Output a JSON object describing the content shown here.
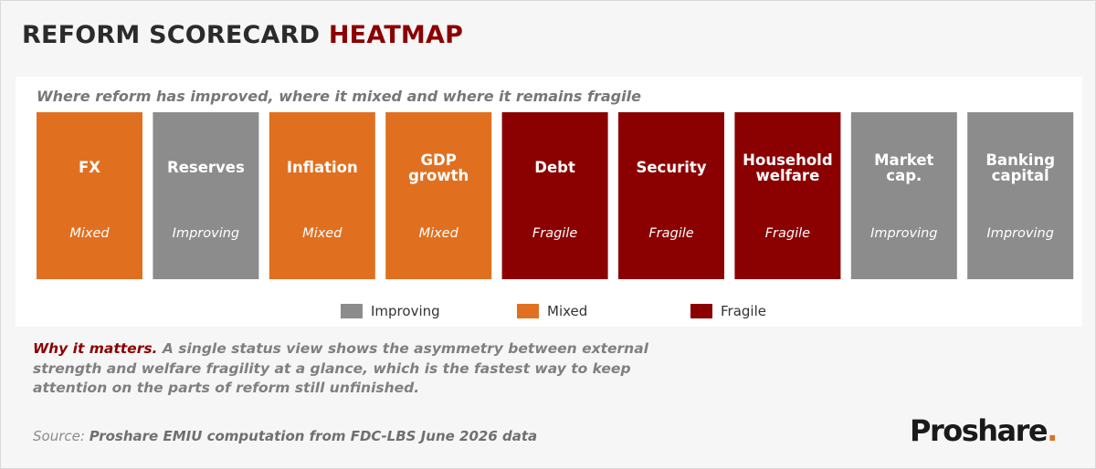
{
  "header": {
    "title_main": "REFORM SCORECARD",
    "title_accent": "HEATMAP",
    "subtitle": "Where reform has improved, where it mixed and where it remains fragile"
  },
  "chart_data": {
    "type": "heatmap",
    "categories": [
      {
        "name": [
          "FX"
        ],
        "status": "Mixed"
      },
      {
        "name": [
          "Reserves"
        ],
        "status": "Improving"
      },
      {
        "name": [
          "Inflation"
        ],
        "status": "Mixed"
      },
      {
        "name": [
          "GDP",
          "growth"
        ],
        "status": "Mixed"
      },
      {
        "name": [
          "Debt"
        ],
        "status": "Fragile"
      },
      {
        "name": [
          "Security"
        ],
        "status": "Fragile"
      },
      {
        "name": [
          "Household",
          "welfare"
        ],
        "status": "Fragile"
      },
      {
        "name": [
          "Market",
          "cap."
        ],
        "status": "Improving"
      },
      {
        "name": [
          "Banking",
          "capital"
        ],
        "status": "Improving"
      }
    ],
    "legend": [
      {
        "label": "Improving",
        "color": "#8c8c8c"
      },
      {
        "label": "Mixed",
        "color": "#e07020"
      },
      {
        "label": "Fragile",
        "color": "#8b0000"
      }
    ],
    "colors": {
      "Improving": "#8c8c8c",
      "Mixed": "#e07020",
      "Fragile": "#8b0000"
    },
    "legend_placement": "bottom"
  },
  "commentary": {
    "lead": "Why it matters.",
    "body": " A single status view shows the asymmetry between external strength and welfare fragility at a glance, which is the fastest way to keep attention on the parts of reform still unfinished."
  },
  "footer": {
    "source_label": "Source:",
    "source_text": "Proshare EMIU computation from FDC-LBS June 2026 data",
    "logo_text": "Proshare",
    "logo_dot": "."
  }
}
